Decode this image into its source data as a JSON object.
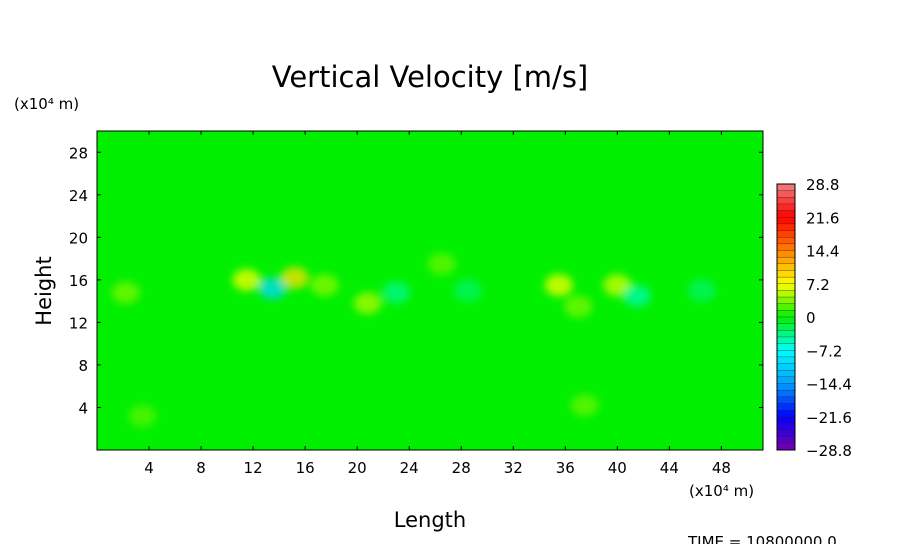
{
  "chart_data": {
    "type": "heatmap",
    "title": "Vertical Velocity [m/s]",
    "xlabel": "Length",
    "ylabel": "Height",
    "x_unit": "(x10⁴ m)",
    "y_unit": "(x10⁴ m)",
    "xlim": [
      0,
      51.2
    ],
    "ylim": [
      0,
      30
    ],
    "x_ticks": [
      4,
      8,
      12,
      16,
      20,
      24,
      28,
      32,
      36,
      40,
      44,
      48
    ],
    "y_ticks": [
      4,
      8,
      12,
      16,
      20,
      24,
      28
    ],
    "background_value": 0,
    "colorbar": {
      "ticks": [
        28.8,
        21.6,
        14.4,
        7.2,
        0,
        -7.2,
        -14.4,
        -21.6,
        -28.8
      ],
      "tick_labels": [
        "28.8",
        "21.6",
        "14.4",
        "7.2",
        "0",
        "−7.2",
        "−14.4",
        "−21.6",
        "−28.8"
      ],
      "range": [
        -28.8,
        28.8
      ],
      "colors_top_to_bottom": [
        "#f08080",
        "#ff0000",
        "#ff8000",
        "#ffff00",
        "#00ff00",
        "#00ffff",
        "#0000ff",
        "#7a00aa"
      ]
    },
    "features": [
      {
        "x": 2.2,
        "y": 14.8,
        "value": 3.5
      },
      {
        "x": 11.5,
        "y": 16.0,
        "value": 7.0
      },
      {
        "x": 13.5,
        "y": 15.2,
        "value": -10.0
      },
      {
        "x": 15.2,
        "y": 16.2,
        "value": 9.0
      },
      {
        "x": 17.5,
        "y": 15.5,
        "value": 4.0
      },
      {
        "x": 20.8,
        "y": 13.8,
        "value": 5.0
      },
      {
        "x": 23.0,
        "y": 14.8,
        "value": -4.0
      },
      {
        "x": 26.5,
        "y": 17.5,
        "value": 3.0
      },
      {
        "x": 28.5,
        "y": 15.0,
        "value": -3.0
      },
      {
        "x": 35.5,
        "y": 15.5,
        "value": 7.0
      },
      {
        "x": 37.0,
        "y": 13.5,
        "value": 3.5
      },
      {
        "x": 40.0,
        "y": 15.5,
        "value": 6.0
      },
      {
        "x": 41.5,
        "y": 14.5,
        "value": -5.0
      },
      {
        "x": 46.5,
        "y": 15.0,
        "value": -3.0
      },
      {
        "x": 37.5,
        "y": 4.2,
        "value": 3.0
      },
      {
        "x": 3.5,
        "y": 3.2,
        "value": 2.5
      }
    ]
  },
  "footer": {
    "time_text": "TIME  =  10800000.0"
  }
}
